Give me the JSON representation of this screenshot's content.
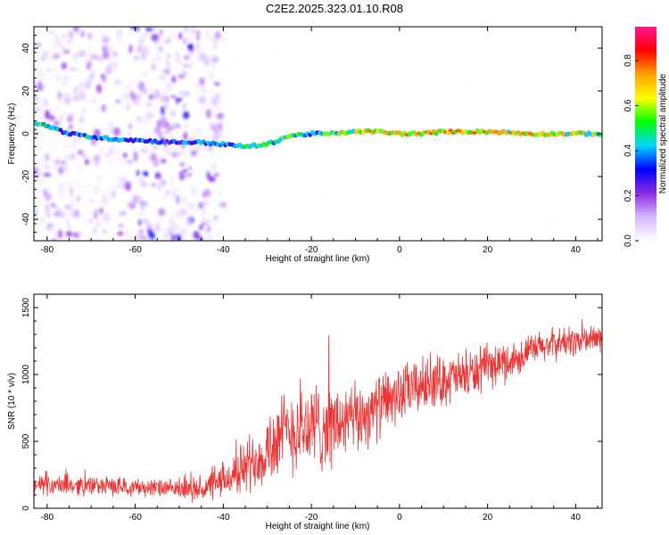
{
  "title": "C2E2.2025.323.01.10.R08",
  "chart_data": [
    {
      "type": "heatmap",
      "name": "spectrogram",
      "xlabel": "Height of straight line (km)",
      "ylabel": "Frequency (Hz)",
      "xlim": [
        -83,
        46
      ],
      "ylim": [
        -50,
        50
      ],
      "xticks": [
        -80,
        -60,
        -40,
        -20,
        0,
        20,
        40
      ],
      "yticks": [
        -40,
        -20,
        0,
        20,
        40
      ],
      "ridge": {
        "x": [
          -82,
          -75,
          -68,
          -60,
          -52,
          -45,
          -40,
          -35,
          -30,
          -25,
          -20,
          -15,
          -10,
          -5,
          0,
          5,
          10,
          20,
          30,
          40,
          46
        ],
        "y": [
          5,
          0,
          -2,
          -3,
          -4,
          -4,
          -5,
          -6,
          -5,
          -1,
          0,
          0,
          1,
          1,
          0,
          0,
          1,
          1,
          0,
          0,
          0
        ],
        "peak_amplitude": [
          0.55,
          0.45,
          0.5,
          0.4,
          0.35,
          0.45,
          0.5,
          0.5,
          0.55,
          0.6,
          0.5,
          0.6,
          0.8,
          0.75,
          0.85,
          0.9,
          0.85,
          0.8,
          0.75,
          0.7,
          0.6
        ]
      },
      "noise_region_xlim": [
        -83,
        -40
      ],
      "colorbar": {
        "label": "Normalized spectral amplitude",
        "range": [
          0,
          0.95
        ],
        "ticks": [
          0.0,
          0.2,
          0.4,
          0.6,
          0.8
        ],
        "tick_labels": [
          "0.0",
          "0.2",
          "0.4",
          "0.6",
          "0.8"
        ],
        "colors": [
          "#ffffff",
          "#d7b8ff",
          "#8a2be2",
          "#0000ff",
          "#00d7ff",
          "#00ff00",
          "#ffff00",
          "#ffa000",
          "#ff0000",
          "#ff1493"
        ]
      }
    },
    {
      "type": "line",
      "name": "snr",
      "xlabel": "Height of straight line (km)",
      "ylabel": "SNR (10 * v/v)",
      "xlim": [
        -83,
        46
      ],
      "ylim": [
        0,
        1600
      ],
      "xticks": [
        -80,
        -60,
        -40,
        -20,
        0,
        20,
        40
      ],
      "yticks": [
        0,
        500,
        1000,
        1500
      ],
      "color": "#ee3333",
      "trend": {
        "x": [
          -83,
          -70,
          -60,
          -50,
          -45,
          -40,
          -35,
          -30,
          -25,
          -20,
          -15,
          -10,
          -5,
          0,
          5,
          10,
          15,
          20,
          25,
          30,
          35,
          40,
          46
        ],
        "y": [
          170,
          170,
          160,
          140,
          140,
          200,
          310,
          450,
          580,
          600,
          620,
          660,
          760,
          850,
          920,
          960,
          990,
          1050,
          1100,
          1180,
          1230,
          1250,
          1270
        ]
      },
      "spike_amplitude": {
        "x": [
          -83,
          -50,
          -45,
          -40,
          -30,
          -20,
          -10,
          0,
          10,
          20,
          30,
          46
        ],
        "y": [
          90,
          80,
          120,
          150,
          350,
          420,
          320,
          260,
          230,
          200,
          150,
          130
        ]
      }
    }
  ]
}
